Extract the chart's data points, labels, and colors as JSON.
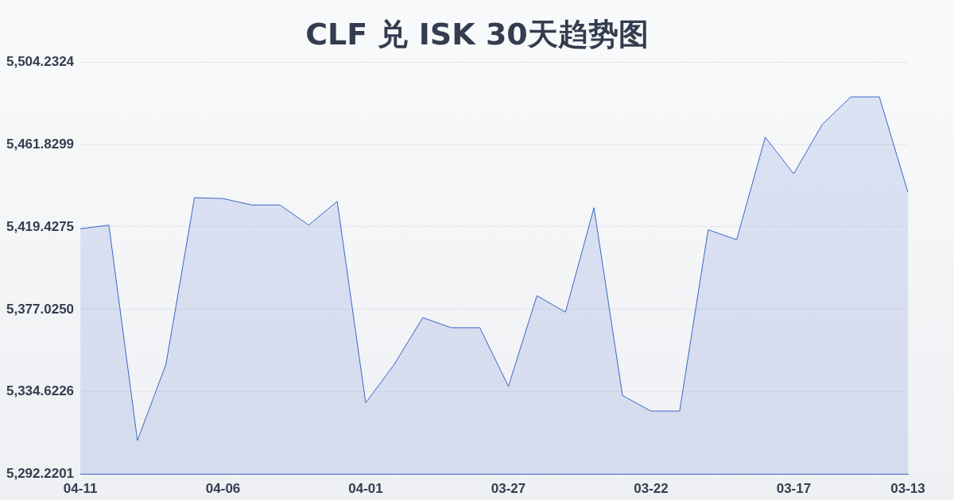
{
  "chart_data": {
    "type": "area",
    "title": "CLF 兑 ISK 30天趋势图",
    "categories": [
      "04-11",
      null,
      null,
      null,
      null,
      "04-06",
      null,
      null,
      null,
      null,
      "04-01",
      null,
      null,
      null,
      null,
      "03-27",
      null,
      null,
      null,
      null,
      "03-22",
      null,
      null,
      null,
      null,
      "03-17",
      null,
      null,
      null,
      "03-13"
    ],
    "series": [
      {
        "color": "#3a66c8",
        "values": [
          5418.49,
          5420.37,
          5309.65,
          5348.76,
          5434.5,
          5434.03,
          5430.74,
          5430.74,
          5420.37,
          5432.62,
          5328.97,
          5348.76,
          5372.79,
          5367.6,
          5367.6,
          5337.45,
          5384.09,
          5375.61,
          5429.32,
          5332.74,
          5324.73,
          5324.73,
          5418.01,
          5412.83,
          5465.6,
          5446.75,
          5472.2,
          5486.33,
          5486.33,
          5437.33
        ]
      }
    ],
    "ylim": [
      5292.2201,
      5504.2324
    ],
    "yticks": [
      {
        "value": 5292.2201,
        "label": "5,292.2201"
      },
      {
        "value": 5334.6226,
        "label": "5,334.6226"
      },
      {
        "value": 5377.025,
        "label": "5,377.0250"
      },
      {
        "value": 5419.4275,
        "label": "5,419.4275"
      },
      {
        "value": 5461.8299,
        "label": "5,461.8299"
      },
      {
        "value": 5504.2324,
        "label": "5,504.2324"
      }
    ],
    "grid": "y",
    "legend": false,
    "marker": "none",
    "line_style": "solid"
  }
}
